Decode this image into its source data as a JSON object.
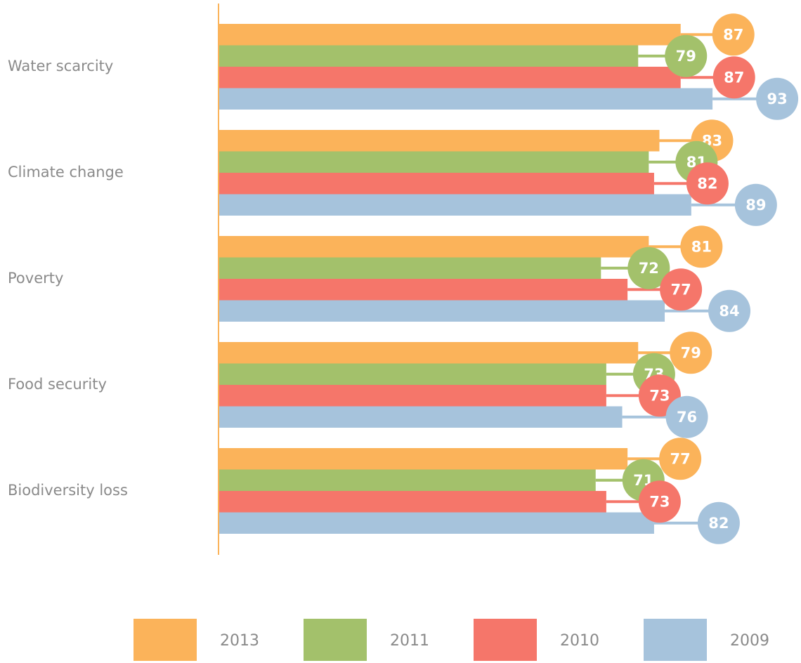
{
  "chart_data": {
    "type": "bar",
    "orientation": "horizontal",
    "categories": [
      "Water scarcity",
      "Climate change",
      "Poverty",
      "Food security",
      "Biodiversity loss"
    ],
    "series": [
      {
        "name": "2013",
        "color": "#fbb35a",
        "values": [
          87,
          83,
          81,
          79,
          77
        ]
      },
      {
        "name": "2011",
        "color": "#a3c16b",
        "values": [
          79,
          81,
          72,
          73,
          71
        ]
      },
      {
        "name": "2010",
        "color": "#f5766a",
        "values": [
          87,
          82,
          77,
          73,
          73
        ]
      },
      {
        "name": "2009",
        "color": "#a6c3dc",
        "values": [
          93,
          89,
          84,
          76,
          82
        ]
      }
    ],
    "axis_color": "#fbb35a"
  }
}
